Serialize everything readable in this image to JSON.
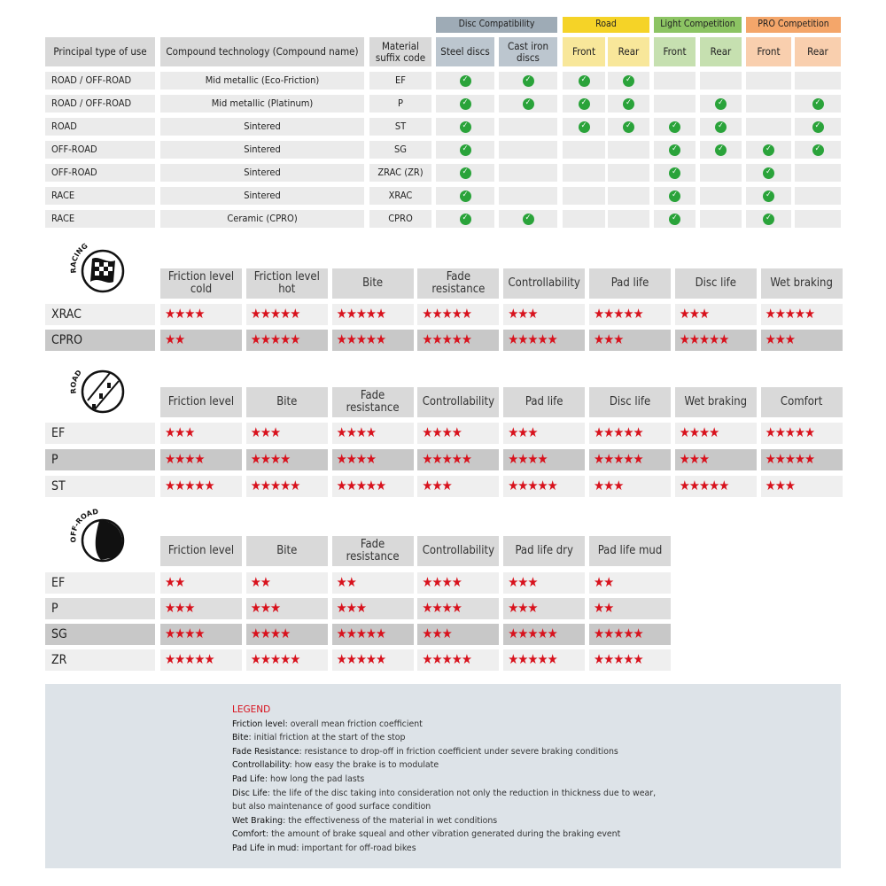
{
  "compat": {
    "groups": [
      {
        "label": "Disc Compatibility",
        "color": "#9eabb6",
        "sub": "#bcc6cf"
      },
      {
        "label": "Road",
        "color": "#f5d327",
        "sub": "#f8e79a"
      },
      {
        "label": "Light Competition",
        "color": "#8cc463",
        "sub": "#c6e0b0"
      },
      {
        "label": "PRO Competition",
        "color": "#f4a66a",
        "sub": "#f9cfae"
      }
    ],
    "headers": [
      "Principal type of use",
      "Compound technology (Compound name)",
      "Material suffix code",
      "Steel discs",
      "Cast iron discs",
      "Front",
      "Rear",
      "Front",
      "Rear",
      "Front",
      "Rear"
    ],
    "rows": [
      {
        "use": "ROAD / OFF-ROAD",
        "compound": "Mid metallic (Eco-Friction)",
        "code": "EF",
        "checks": [
          1,
          1,
          1,
          1,
          0,
          0,
          0,
          0
        ]
      },
      {
        "use": "ROAD / OFF-ROAD",
        "compound": "Mid metallic (Platinum)",
        "code": "P",
        "checks": [
          1,
          1,
          1,
          1,
          0,
          1,
          0,
          1
        ]
      },
      {
        "use": "ROAD",
        "compound": "Sintered",
        "code": "ST",
        "checks": [
          1,
          0,
          1,
          1,
          1,
          1,
          0,
          1
        ]
      },
      {
        "use": "OFF-ROAD",
        "compound": "Sintered",
        "code": "SG",
        "checks": [
          1,
          0,
          0,
          0,
          1,
          1,
          1,
          1
        ]
      },
      {
        "use": "OFF-ROAD",
        "compound": "Sintered",
        "code": "ZRAC (ZR)",
        "checks": [
          1,
          0,
          0,
          0,
          1,
          0,
          1,
          0
        ]
      },
      {
        "use": "RACE",
        "compound": "Sintered",
        "code": "XRAC",
        "checks": [
          1,
          0,
          0,
          0,
          1,
          0,
          1,
          0
        ]
      },
      {
        "use": "RACE",
        "compound": "Ceramic (CPRO)",
        "code": "CPRO",
        "checks": [
          1,
          1,
          0,
          0,
          1,
          0,
          1,
          0
        ]
      }
    ]
  },
  "ratings": [
    {
      "icon_label": "RACING",
      "icon": "checkered-flag-icon",
      "headers": [
        "Friction level cold",
        "Friction level hot",
        "Bite",
        "Fade resistance",
        "Controllability",
        "Pad life",
        "Disc life",
        "Wet braking"
      ],
      "rows": [
        {
          "name": "XRAC",
          "stars": [
            4,
            5,
            5,
            5,
            3,
            5,
            3,
            5
          ]
        },
        {
          "name": "CPRO",
          "stars": [
            2,
            5,
            5,
            5,
            5,
            3,
            5,
            3
          ]
        }
      ]
    },
    {
      "icon_label": "ROAD",
      "icon": "road-icon",
      "headers": [
        "Friction level",
        "Bite",
        "Fade resistance",
        "Controllability",
        "Pad life",
        "Disc life",
        "Wet braking",
        "Comfort"
      ],
      "rows": [
        {
          "name": "EF",
          "stars": [
            3,
            3,
            4,
            4,
            3,
            5,
            4,
            5
          ]
        },
        {
          "name": "P",
          "stars": [
            4,
            4,
            4,
            5,
            4,
            5,
            3,
            5
          ]
        },
        {
          "name": "ST",
          "stars": [
            5,
            5,
            5,
            3,
            5,
            3,
            5,
            3
          ]
        }
      ]
    },
    {
      "icon_label": "OFF-ROAD",
      "icon": "off-road-icon",
      "headers": [
        "Friction level",
        "Bite",
        "Fade resistance",
        "Controllability",
        "Pad life dry",
        "Pad life mud"
      ],
      "rows": [
        {
          "name": "EF",
          "stars": [
            2,
            2,
            2,
            4,
            3,
            2
          ]
        },
        {
          "name": "P",
          "stars": [
            3,
            3,
            3,
            4,
            3,
            2
          ]
        },
        {
          "name": "SG",
          "stars": [
            4,
            4,
            5,
            3,
            5,
            5
          ]
        },
        {
          "name": "ZR",
          "stars": [
            5,
            5,
            5,
            5,
            5,
            5
          ]
        }
      ]
    }
  ],
  "legend": {
    "title": "LEGEND",
    "items": [
      {
        "term": "Friction level",
        "desc": ": overall mean friction coefficient"
      },
      {
        "term": "Bite",
        "desc": ": initial friction at the start of the stop"
      },
      {
        "term": "Fade Resistance",
        "desc": ": resistance to drop-off in friction coefficient under severe braking conditions"
      },
      {
        "term": "Controllability",
        "desc": ": how easy the brake is to modulate"
      },
      {
        "term": "Pad Life",
        "desc": ": how long the pad lasts"
      },
      {
        "term": "Disc Life",
        "desc": ": the life of the disc taking into consideration not only the reduction in thickness due to wear,"
      },
      {
        "term": "",
        "desc": "but also maintenance of good surface condition"
      },
      {
        "term": "Wet Braking",
        "desc": ": the effectiveness of the material in wet conditions"
      },
      {
        "term": "Comfort",
        "desc": ": the amount of brake squeal and other vibration generated during the braking event"
      },
      {
        "term": "Pad Life in mud",
        "desc": ": important for off-road bikes"
      }
    ]
  }
}
